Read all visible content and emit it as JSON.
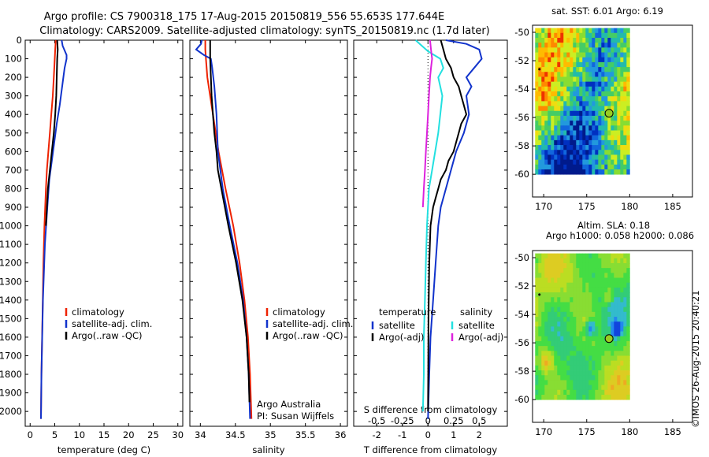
{
  "header": {
    "line1": "Argo profile: CS 7900318_175 17-Aug-2015 20150819_556 55.653S 177.644E",
    "line2": "Climatology: CARS2009. Satellite-adjusted climatology: synTS_20150819.nc (1.7d later)"
  },
  "colors": {
    "climatology": "#ee2200",
    "satellite": "#1133cc",
    "argo": "#000000",
    "s_satellite": "#22e0e0",
    "s_argo": "#dd22dd"
  },
  "credit": {
    "text": "Argo Australia",
    "pi": "PI: Susan Wijffels"
  },
  "timestamp": "©IMOS 26-Aug-2015 20:40:21",
  "chart_data": [
    {
      "id": "temperature",
      "type": "line",
      "xlabel": "temperature (deg C)",
      "xlim": [
        -1,
        31
      ],
      "xticks": [
        0,
        5,
        10,
        15,
        20,
        25,
        30
      ],
      "ylim": [
        2080,
        0
      ],
      "yticks": [
        0,
        100,
        200,
        300,
        400,
        500,
        600,
        700,
        800,
        900,
        1000,
        1100,
        1200,
        1300,
        1400,
        1500,
        1600,
        1700,
        1800,
        1900,
        2000
      ],
      "legend": [
        "climatology",
        "satellite-adj. clim.",
        "Argo(..raw -QC)"
      ],
      "series": [
        {
          "name": "climatology",
          "color": "#ee2200",
          "depth": [
            0,
            50,
            100,
            200,
            300,
            400,
            500,
            600,
            700,
            800,
            1000,
            1200,
            1500,
            1800,
            2040
          ],
          "values": [
            5.2,
            5.1,
            5.0,
            4.8,
            4.6,
            4.3,
            4.0,
            3.7,
            3.4,
            3.2,
            2.9,
            2.7,
            2.5,
            2.3,
            2.2
          ]
        },
        {
          "name": "satellite-adj. clim.",
          "color": "#1133cc",
          "depth": [
            0,
            30,
            80,
            100,
            150,
            250,
            350,
            450,
            550,
            650,
            750,
            900,
            1100,
            1400,
            1800,
            2040
          ],
          "values": [
            6.4,
            6.6,
            7.4,
            7.4,
            7.0,
            6.5,
            6.0,
            5.4,
            4.9,
            4.4,
            3.9,
            3.5,
            3.0,
            2.6,
            2.3,
            2.2
          ]
        },
        {
          "name": "Argo(..raw -QC)",
          "color": "#000000",
          "depth": [
            0,
            50,
            100,
            200,
            300,
            400,
            500,
            600,
            700,
            800,
            900,
            1000
          ],
          "values": [
            5.5,
            5.6,
            5.5,
            5.4,
            5.3,
            5.1,
            4.8,
            4.4,
            4.0,
            3.6,
            3.4,
            3.2
          ]
        }
      ]
    },
    {
      "id": "salinity",
      "type": "line",
      "xlabel": "salinity",
      "xlim": [
        33.85,
        36.1
      ],
      "xticks": [
        34,
        34.5,
        35,
        35.5,
        36
      ],
      "ylim": [
        2080,
        0
      ],
      "legend": [
        "climatology",
        "satellite-adj. clim.",
        "Argo(..raw -QC)"
      ],
      "series": [
        {
          "name": "climatology",
          "color": "#ee2200",
          "depth": [
            0,
            50,
            100,
            200,
            400,
            600,
            800,
            1000,
            1200,
            1400,
            1600,
            1800,
            2040
          ],
          "values": [
            34.07,
            34.07,
            34.08,
            34.1,
            34.18,
            34.26,
            34.36,
            34.47,
            34.56,
            34.63,
            34.68,
            34.71,
            34.73
          ]
        },
        {
          "name": "satellite-adj. clim.",
          "color": "#1133cc",
          "depth": [
            0,
            20,
            50,
            80,
            100,
            150,
            250,
            400,
            600,
            800,
            1000,
            1200,
            1400,
            1600,
            1800,
            2040
          ],
          "values": [
            34.02,
            34.01,
            33.94,
            34.05,
            34.15,
            34.17,
            34.2,
            34.23,
            34.25,
            34.32,
            34.42,
            34.53,
            34.61,
            34.66,
            34.69,
            34.71
          ]
        },
        {
          "name": "Argo(..raw -QC)",
          "color": "#000000",
          "depth": [
            0,
            50,
            100,
            200,
            300,
            400,
            500,
            600,
            700,
            800,
            1000,
            1200,
            1400,
            1600,
            1800,
            1950
          ],
          "values": [
            34.14,
            34.14,
            34.14,
            34.15,
            34.16,
            34.18,
            34.2,
            34.23,
            34.25,
            34.3,
            34.4,
            34.51,
            34.6,
            34.66,
            34.69,
            34.7
          ]
        }
      ]
    },
    {
      "id": "difference",
      "type": "line",
      "xlabel": "T difference from climatology",
      "x2label": "S difference from climatology",
      "xlim": [
        -2.9,
        3.1
      ],
      "xticks": [
        -2,
        -1,
        0,
        1,
        2
      ],
      "x2ticks": [
        -0.5,
        -0.25,
        0,
        0.25,
        0.5
      ],
      "x2tick_labels": [
        "-0.5",
        "-0.25",
        "0",
        "0.25",
        "0.5"
      ],
      "ylim": [
        2080,
        0
      ],
      "legend_groups": [
        {
          "title": "temperature",
          "items": [
            "satellite",
            "Argo(-adj)"
          ]
        },
        {
          "title": "salinity",
          "items": [
            "satellite",
            "Argo(-adj)"
          ]
        }
      ],
      "series": [
        {
          "name": "satellite",
          "group": "temperature",
          "color": "#1133cc",
          "depth": [
            0,
            20,
            50,
            100,
            150,
            200,
            250,
            300,
            400,
            500,
            600,
            700,
            800,
            900,
            1000,
            1200,
            1400,
            1600,
            1800,
            2040
          ],
          "values": [
            0.7,
            1.5,
            2.0,
            2.1,
            1.8,
            1.5,
            1.7,
            1.5,
            1.6,
            1.4,
            1.1,
            0.9,
            0.7,
            0.5,
            0.4,
            0.3,
            0.2,
            0.1,
            0.05,
            0.0
          ]
        },
        {
          "name": "Argo(-adj)",
          "group": "temperature",
          "color": "#000000",
          "depth": [
            0,
            50,
            100,
            150,
            200,
            250,
            300,
            350,
            400,
            450,
            500,
            550,
            600,
            650,
            700,
            750,
            800,
            850,
            900,
            1000,
            1200,
            1500,
            1800,
            2000
          ],
          "values": [
            0.5,
            0.6,
            0.7,
            0.9,
            1.0,
            1.2,
            1.3,
            1.4,
            1.5,
            1.3,
            1.2,
            1.1,
            1.0,
            0.8,
            0.7,
            0.5,
            0.4,
            0.3,
            0.2,
            0.1,
            0.05,
            0.02,
            0.01,
            0.0
          ]
        },
        {
          "name": "satellite",
          "group": "salinity",
          "color": "#22e0e0",
          "depth": [
            0,
            30,
            60,
            100,
            150,
            200,
            250,
            300,
            400,
            500,
            600,
            700,
            800,
            1000,
            1200,
            1400,
            1600,
            1800,
            2000
          ],
          "values": [
            -0.12,
            -0.06,
            0.0,
            0.12,
            0.15,
            0.1,
            0.12,
            0.14,
            0.12,
            0.1,
            0.07,
            0.04,
            0.01,
            -0.01,
            -0.02,
            -0.03,
            -0.04,
            -0.04,
            -0.05
          ]
        },
        {
          "name": "Argo(-adj)",
          "group": "salinity",
          "color": "#dd22dd",
          "depth": [
            0,
            50,
            100,
            150,
            200,
            300,
            400,
            500,
            600,
            700,
            800,
            900
          ],
          "values": [
            0.02,
            0.03,
            0.04,
            0.03,
            0.02,
            0.01,
            0.0,
            -0.01,
            -0.02,
            -0.03,
            -0.04,
            -0.05
          ]
        }
      ]
    },
    {
      "id": "sst-map",
      "type": "heatmap",
      "title": "sat. SST: 6.01  Argo: 6.19",
      "xticks": [
        170,
        175,
        180,
        185
      ],
      "yticks": [
        -50,
        -52,
        -54,
        -56,
        -58,
        -60
      ],
      "xlim": [
        168.7,
        187.3
      ],
      "ylim": [
        -49.5,
        -61.6
      ],
      "data_extent": {
        "lon": [
          169,
          180
        ],
        "lat": [
          -49.7,
          -60.0
        ]
      },
      "argo_position": {
        "lon": 177.6,
        "lat": -55.7
      },
      "small_marker": {
        "lon": 169.5,
        "lat": -52.6
      }
    },
    {
      "id": "sla-map",
      "type": "heatmap",
      "title": "Altim. SLA: 0.18",
      "subtitle": "Argo h1000: 0.058 h2000: 0.086",
      "xticks": [
        170,
        175,
        180,
        185
      ],
      "yticks": [
        -50,
        -52,
        -54,
        -56,
        -58,
        -60
      ],
      "xlim": [
        168.7,
        187.3
      ],
      "ylim": [
        -49.5,
        -61.6
      ],
      "data_extent": {
        "lon": [
          169,
          180
        ],
        "lat": [
          -49.7,
          -60.0
        ]
      },
      "argo_position": {
        "lon": 177.6,
        "lat": -55.7
      },
      "small_marker": {
        "lon": 169.5,
        "lat": -52.6
      }
    }
  ]
}
